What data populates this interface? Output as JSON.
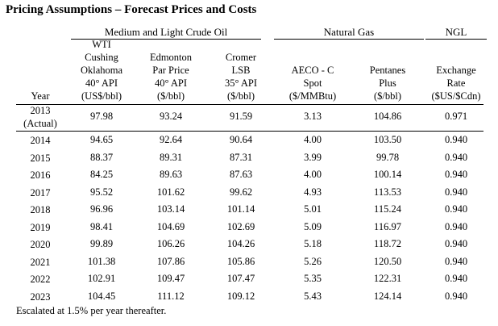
{
  "title": "Pricing Assumptions – Forecast Prices and Costs",
  "groups": {
    "crude": "Medium and Light Crude Oil",
    "gas": "Natural Gas",
    "ngl": "NGL"
  },
  "headers": {
    "year": "Year",
    "wti": [
      "WTI",
      "Cushing",
      "Oklahoma",
      "40° API",
      "(US$/bbl)"
    ],
    "edmonton": [
      "Edmonton",
      "Par Price",
      "40° API",
      "($/bbl)"
    ],
    "cromer": [
      "Cromer",
      "LSB",
      "35° API",
      "($/bbl)"
    ],
    "aeco": [
      "AECO - C",
      "Spot",
      "($/MMBtu)"
    ],
    "pentanes": [
      "Pentanes",
      "Plus",
      "($/bbl)"
    ],
    "exchange": [
      "Exchange",
      "Rate",
      "($US/$Cdn)"
    ]
  },
  "rows": [
    {
      "year": "2013",
      "year_note": "(Actual)",
      "wti": "97.98",
      "edmonton": "93.24",
      "cromer": "91.59",
      "aeco": "3.13",
      "pentanes": "104.86",
      "exchange": "0.971"
    },
    {
      "year": "2014",
      "wti": "94.65",
      "edmonton": "92.64",
      "cromer": "90.64",
      "aeco": "4.00",
      "pentanes": "103.50",
      "exchange": "0.940"
    },
    {
      "year": "2015",
      "wti": "88.37",
      "edmonton": "89.31",
      "cromer": "87.31",
      "aeco": "3.99",
      "pentanes": "99.78",
      "exchange": "0.940"
    },
    {
      "year": "2016",
      "wti": "84.25",
      "edmonton": "89.63",
      "cromer": "87.63",
      "aeco": "4.00",
      "pentanes": "100.14",
      "exchange": "0.940"
    },
    {
      "year": "2017",
      "wti": "95.52",
      "edmonton": "101.62",
      "cromer": "99.62",
      "aeco": "4.93",
      "pentanes": "113.53",
      "exchange": "0.940"
    },
    {
      "year": "2018",
      "wti": "96.96",
      "edmonton": "103.14",
      "cromer": "101.14",
      "aeco": "5.01",
      "pentanes": "115.24",
      "exchange": "0.940"
    },
    {
      "year": "2019",
      "wti": "98.41",
      "edmonton": "104.69",
      "cromer": "102.69",
      "aeco": "5.09",
      "pentanes": "116.97",
      "exchange": "0.940"
    },
    {
      "year": "2020",
      "wti": "99.89",
      "edmonton": "106.26",
      "cromer": "104.26",
      "aeco": "5.18",
      "pentanes": "118.72",
      "exchange": "0.940"
    },
    {
      "year": "2021",
      "wti": "101.38",
      "edmonton": "107.86",
      "cromer": "105.86",
      "aeco": "5.26",
      "pentanes": "120.50",
      "exchange": "0.940"
    },
    {
      "year": "2022",
      "wti": "102.91",
      "edmonton": "109.47",
      "cromer": "107.47",
      "aeco": "5.35",
      "pentanes": "122.31",
      "exchange": "0.940"
    },
    {
      "year": "2023",
      "wti": "104.45",
      "edmonton": "111.12",
      "cromer": "109.12",
      "aeco": "5.43",
      "pentanes": "124.14",
      "exchange": "0.940"
    }
  ],
  "footnote": "Escalated at 1.5% per year thereafter."
}
